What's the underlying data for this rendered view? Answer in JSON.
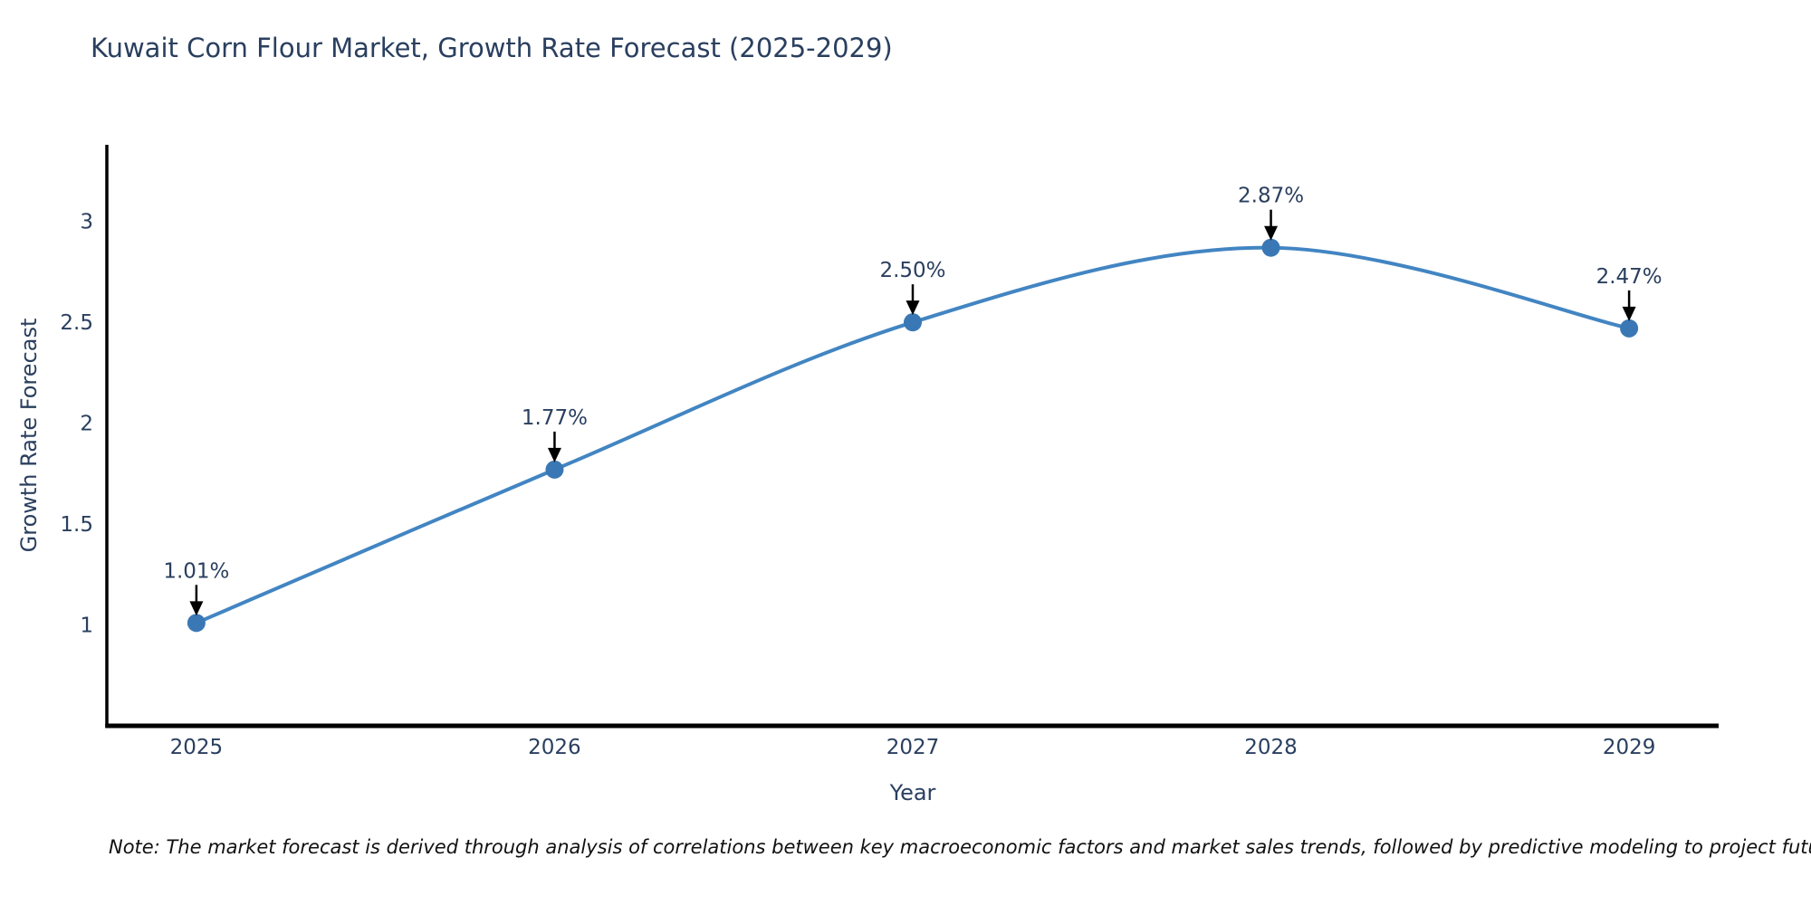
{
  "figure": {
    "note": "Note: The market forecast is derived through analysis of correlations between key macroeconomic factors and market sales trends, followed by predictive modeling to project future sales"
  },
  "chart_data": {
    "type": "line",
    "title": "Kuwait Corn Flour Market, Growth Rate Forecast (2025-2029)",
    "xlabel": "Year",
    "ylabel": "Growth Rate Forecast",
    "x": [
      2025,
      2026,
      2027,
      2028,
      2029
    ],
    "values": [
      1.01,
      1.77,
      2.5,
      2.87,
      2.47
    ],
    "point_labels": [
      "1.01%",
      "1.77%",
      "2.50%",
      "2.87%",
      "2.47%"
    ],
    "xtick_labels": [
      "2025",
      "2026",
      "2027",
      "2028",
      "2029"
    ],
    "ytick_values": [
      1,
      1.5,
      2,
      2.5,
      3
    ],
    "ytick_labels": [
      "1",
      "1.5",
      "2",
      "2.5",
      "3"
    ],
    "xlim": [
      2024.75,
      2029.25
    ],
    "ylim": [
      0.5,
      3.38
    ],
    "grid": false,
    "legend_position": "none",
    "line_shape": "spline",
    "annotation_style": "arrow-down-to-point",
    "colors": {
      "line": "#4285c2",
      "marker": "#3a78b5",
      "axis": "#000000",
      "tick_text": "#2a3f5f",
      "annotation_text": "#2a3f5f",
      "annotation_arrow": "#000000",
      "background": "#ffffff"
    }
  }
}
